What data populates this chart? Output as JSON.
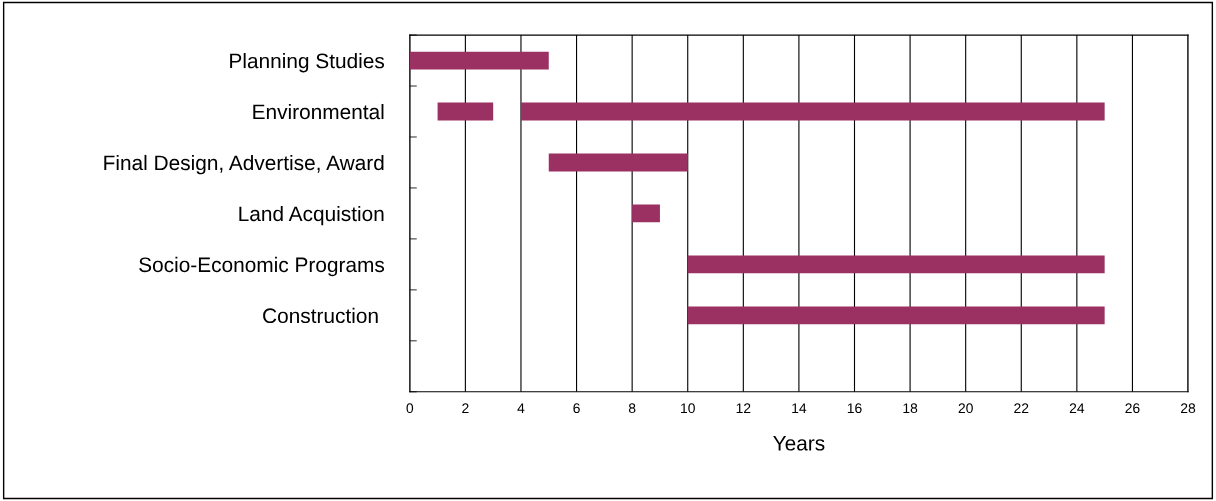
{
  "chart_data": {
    "type": "bar",
    "orientation": "horizontal",
    "xlabel": "Years",
    "categories": [
      "Planning Studies",
      "Environmental",
      "Final Design, Advertise, Award",
      "Land Acquistion",
      "Socio-Economic Programs",
      "Construction ",
      null
    ],
    "series": [
      {
        "color": "#9b3163",
        "base": [
          0,
          1,
          5,
          8,
          10,
          10,
          null
        ],
        "values": [
          5,
          2,
          5,
          1,
          15,
          15,
          null
        ]
      },
      {
        "color": "#9b3163",
        "base": [
          null,
          4,
          null,
          null,
          null,
          null,
          null
        ],
        "values": [
          null,
          21,
          null,
          null,
          null,
          null,
          null
        ]
      }
    ],
    "xlim": [
      0,
      28
    ],
    "xticks": [
      0,
      2,
      4,
      6,
      8,
      10,
      12,
      14,
      16,
      18,
      20,
      22,
      24,
      26,
      28
    ],
    "grid": "x",
    "legend": false
  }
}
